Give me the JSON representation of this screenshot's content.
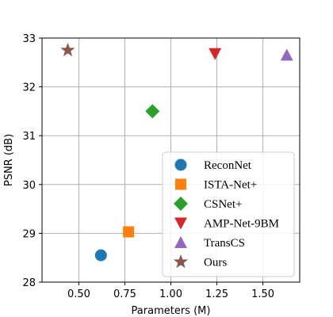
{
  "chart_data": {
    "type": "scatter",
    "title": "",
    "xlabel": "Parameters (M)",
    "ylabel": "PSNR (dB)",
    "xlim": [
      0.3,
      1.7
    ],
    "ylim": [
      28,
      33
    ],
    "xticks": [
      0.5,
      0.75,
      1.0,
      1.25,
      1.5
    ],
    "xtick_labels": [
      "0.50",
      "0.75",
      "1.00",
      "1.25",
      "1.50"
    ],
    "yticks": [
      28,
      29,
      30,
      31,
      32,
      33
    ],
    "ytick_labels": [
      "28",
      "29",
      "30",
      "31",
      "32",
      "33"
    ],
    "grid": true,
    "legend_position": "lower-right",
    "series": [
      {
        "name": "ReconNet",
        "x": 0.62,
        "y": 28.55,
        "color": "#1f77b4",
        "marker": "circle"
      },
      {
        "name": "ISTA-Net+",
        "x": 0.77,
        "y": 29.03,
        "color": "#ff7f0e",
        "marker": "square"
      },
      {
        "name": "CSNet+",
        "x": 0.9,
        "y": 31.5,
        "color": "#2ca02c",
        "marker": "diamond"
      },
      {
        "name": "AMP-Net-9BM",
        "x": 1.24,
        "y": 32.68,
        "color": "#d62728",
        "marker": "triangle-down"
      },
      {
        "name": "TransCS",
        "x": 1.63,
        "y": 32.65,
        "color": "#9467bd",
        "marker": "triangle-up"
      },
      {
        "name": "Ours",
        "x": 0.44,
        "y": 32.75,
        "color": "#8c564b",
        "marker": "star"
      }
    ]
  }
}
